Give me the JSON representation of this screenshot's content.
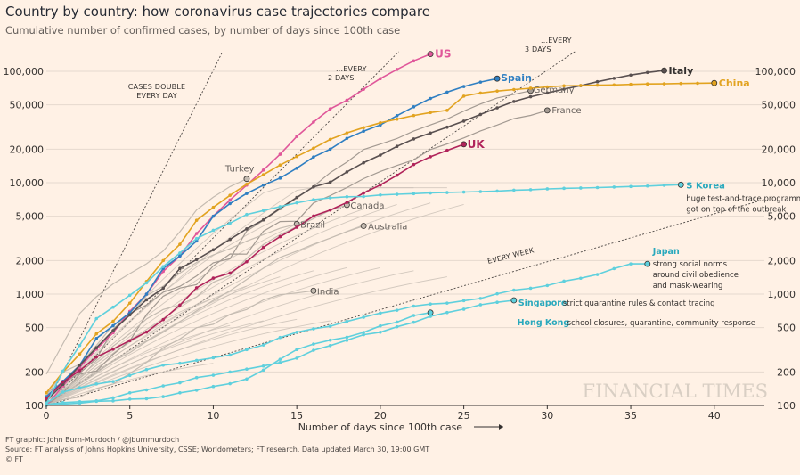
{
  "title": "Country by country: how coronavirus case trajectories compare",
  "subtitle": "Cumulative number of confirmed cases, by number of days since 100th case",
  "footer": {
    "credit": "FT graphic: John Burn-Murdoch / @jburnmurdoch",
    "source": "Source: FT analysis of Johns Hopkins University, CSSE; Worldometers; FT research. Data updated March 30, 19:00 GMT",
    "copyright": "© FT"
  },
  "watermark": "FINANCIAL TIMES",
  "colors": {
    "background": "#fff1e5",
    "us": "#e0579a",
    "spain": "#2f7fc2",
    "italy": "#595050",
    "china": "#e2a320",
    "uk": "#b0235a",
    "asia": "#5fd0dd",
    "others": "#c4bbb1"
  },
  "chart_data": {
    "type": "line",
    "title": "Country by country: how coronavirus case trajectories compare",
    "xlabel": "Number of days since 100th case",
    "ylabel": "",
    "xlim": [
      0,
      43
    ],
    "ylim": [
      100,
      150000
    ],
    "yscale": "log",
    "x_ticks": [
      0,
      5,
      10,
      15,
      20,
      25,
      30,
      35,
      40
    ],
    "y_ticks": [
      100,
      200,
      500,
      1000,
      2000,
      5000,
      10000,
      20000,
      50000,
      100000
    ],
    "y_tick_labels": [
      "100",
      "200",
      "500",
      "1,000",
      "2,000",
      "5,000",
      "10,000",
      "20,000",
      "50,000",
      "100,000"
    ],
    "reference_lines": [
      {
        "label": "CASES DOUBLE\nEVERY DAY",
        "doubling_days": 1
      },
      {
        "label": "...EVERY\n2 DAYS",
        "doubling_days": 2
      },
      {
        "label": "...EVERY\n3 DAYS",
        "doubling_days": 3
      },
      {
        "label": "EVERY WEEK",
        "doubling_days": 7
      }
    ],
    "series": [
      {
        "name": "US",
        "highlight": true,
        "values": [
          100,
          150,
          220,
          320,
          450,
          700,
          1000,
          1600,
          2200,
          3500,
          5000,
          7000,
          9500,
          13000,
          18000,
          26000,
          35000,
          46000,
          55000,
          69000,
          86000,
          104000,
          124000,
          143000
        ]
      },
      {
        "name": "Spain",
        "highlight": true,
        "values": [
          120,
          165,
          230,
          400,
          520,
          680,
          1000,
          1700,
          2200,
          3000,
          5000,
          6500,
          8000,
          9500,
          11000,
          13500,
          17000,
          20000,
          25000,
          29000,
          33000,
          40000,
          48000,
          57000,
          65000,
          73000,
          80000,
          86000
        ]
      },
      {
        "name": "Italy",
        "highlight": true,
        "values": [
          110,
          155,
          230,
          330,
          470,
          650,
          890,
          1130,
          1700,
          2040,
          2500,
          3100,
          3850,
          4640,
          5880,
          7380,
          9170,
          10100,
          12500,
          15100,
          17700,
          21200,
          24700,
          27900,
          31500,
          35700,
          41000,
          47000,
          53600,
          59100,
          63900,
          69200,
          74400,
          80600,
          86500,
          92500,
          97700,
          101700
        ]
      },
      {
        "name": "China",
        "highlight": true,
        "values": [
          130,
          200,
          290,
          440,
          570,
          830,
          1300,
          2000,
          2800,
          4600,
          6000,
          7700,
          9700,
          11800,
          14400,
          17200,
          20400,
          24500,
          28000,
          31200,
          34500,
          37200,
          40100,
          42600,
          44600,
          59800,
          63800,
          66500,
          68500,
          70500,
          72400,
          74100,
          74500,
          75000,
          75500,
          76300,
          77000,
          77200,
          77700,
          78100,
          78500
        ]
      },
      {
        "name": "UK",
        "highlight": true,
        "values": [
          115,
          163,
          206,
          273,
          321,
          382,
          456,
          590,
          798,
          1140,
          1391,
          1543,
          1950,
          2630,
          3277,
          3983,
          5018,
          5683,
          6650,
          8077,
          9529,
          11658,
          14543,
          17089,
          19522,
          22141
        ]
      },
      {
        "name": "S Korea",
        "highlight": true,
        "values": [
          104,
          204,
          346,
          602,
          763,
          977,
          1261,
          1766,
          2337,
          3150,
          3736,
          4335,
          5186,
          5621,
          6088,
          6593,
          7041,
          7313,
          7478,
          7513,
          7755,
          7869,
          7979,
          8086,
          8162,
          8236,
          8320,
          8413,
          8565,
          8652,
          8799,
          8897,
          8961,
          9037,
          9137,
          9241,
          9332,
          9478,
          9583
        ]
      },
      {
        "name": "Japan",
        "highlight": true,
        "values": [
          105,
          132,
          144,
          156,
          164,
          186,
          210,
          230,
          239,
          254,
          268,
          284,
          317,
          349,
          408,
          455,
          488,
          514,
          568,
          620,
          675,
          716,
          780,
          814,
          829,
          873,
          914,
          1007,
          1086,
          1128,
          1193,
          1307,
          1387,
          1499,
          1693,
          1866,
          1866
        ]
      },
      {
        "name": "Singapore",
        "highlight": true,
        "values": [
          102,
          106,
          108,
          110,
          117,
          130,
          138,
          150,
          160,
          178,
          187,
          200,
          212,
          226,
          243,
          266,
          313,
          345,
          385,
          432,
          455,
          509,
          558,
          631,
          683,
          732,
          802,
          844,
          879
        ]
      },
      {
        "name": "Hong Kong",
        "highlight": true,
        "values": [
          100,
          103,
          105,
          109,
          110,
          114,
          115,
          120,
          130,
          137,
          148,
          157,
          173,
          208,
          260,
          318,
          356,
          386,
          410,
          453,
          518,
          560,
          642,
          682
        ]
      },
      {
        "name": "Germany",
        "highlight": false,
        "values": [
          130,
          159,
          196,
          262,
          482,
          670,
          799,
          1040,
          1176,
          1457,
          1908,
          2078,
          3675,
          4585,
          5795,
          7272,
          9257,
          12327,
          15320,
          19848,
          22213,
          24873,
          29056,
          32986,
          37323,
          43938,
          50871,
          57695,
          62095,
          66885
        ]
      },
      {
        "name": "France",
        "highlight": false,
        "values": [
          100,
          130,
          191,
          204,
          288,
          380,
          656,
          957,
          1134,
          1217,
          1791,
          2289,
          2284,
          3667,
          4480,
          4513,
          6573,
          7652,
          9043,
          10871,
          12612,
          14282,
          16018,
          19856,
          22304,
          25233,
          29155,
          32964,
          37575,
          40174,
          44550
        ]
      },
      {
        "name": "Turkey",
        "highlight": false,
        "values": [
          191,
          359,
          670,
          947,
          1236,
          1529,
          1872,
          2433,
          3629,
          5698,
          7402,
          9217,
          10827
        ]
      },
      {
        "name": "Canada",
        "highlight": false,
        "values": [
          103,
          138,
          176,
          252,
          341,
          441,
          598,
          727,
          800,
          943,
          1277,
          1465,
          2091,
          2792,
          3409,
          4043,
          4757,
          5655,
          6320
        ]
      },
      {
        "name": "Brazil",
        "highlight": false,
        "values": [
          121,
          200,
          234,
          346,
          529,
          640,
          970,
          1178,
          1546,
          1924,
          2247,
          2554,
          2985,
          3417,
          3904,
          4256
        ]
      },
      {
        "name": "Australia",
        "highlight": false,
        "values": [
          112,
          128,
          156,
          197,
          249,
          298,
          375,
          454,
          565,
          709,
          876,
          1071,
          1352,
          1709,
          2136,
          2431,
          2807,
          3179,
          3635,
          4093
        ]
      },
      {
        "name": "India",
        "highlight": false,
        "values": [
          102,
          113,
          119,
          142,
          156,
          194,
          244,
          330,
          396,
          499,
          536,
          657,
          727,
          887,
          987,
          1024,
          1071
        ]
      }
    ],
    "annotations": [
      {
        "series": "S Korea",
        "text": "huge test-and-trace programme got on top of the outbreak"
      },
      {
        "series": "Japan",
        "text": "strong social norms around civil obedience and mask-wearing"
      },
      {
        "series": "Singapore",
        "text": "strict quarantine rules & contact tracing"
      },
      {
        "series": "Hong Kong",
        "text": "school closures, quarantine, community response"
      }
    ]
  }
}
